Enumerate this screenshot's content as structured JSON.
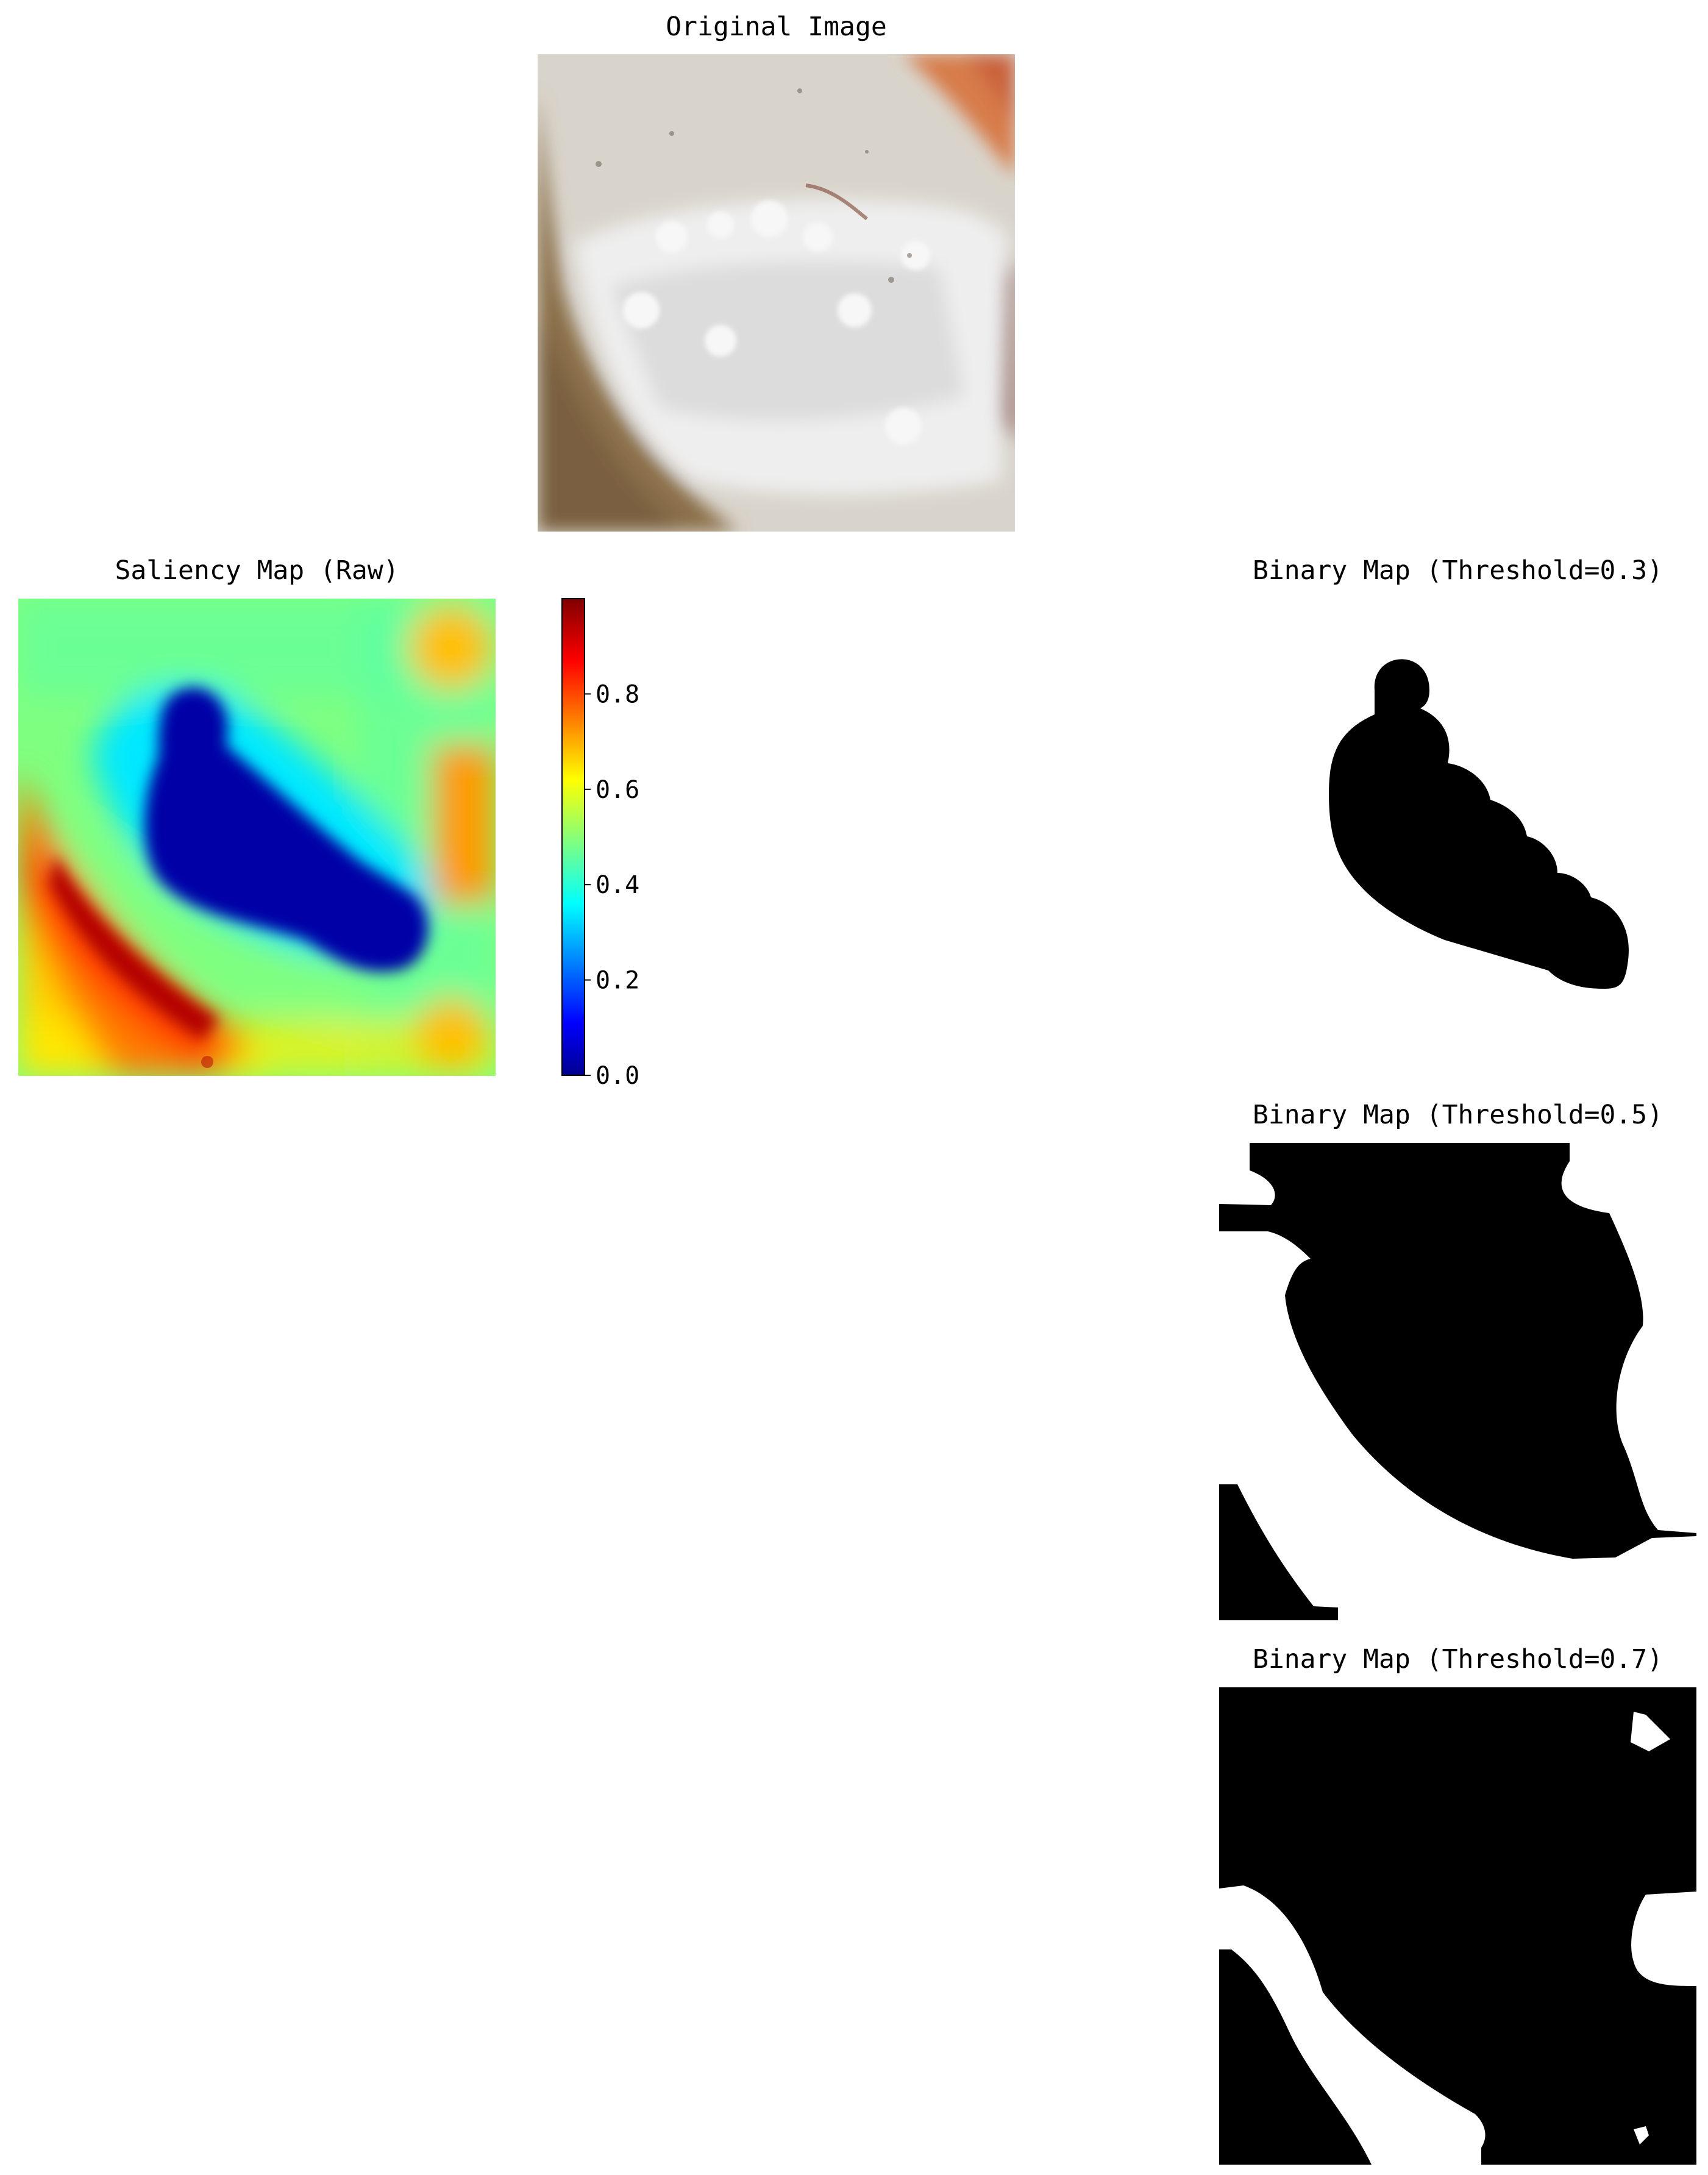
{
  "figure": {
    "original": {
      "title": "Original Image"
    },
    "saliency": {
      "title": "Saliency Map (Raw)"
    },
    "colorbar": {
      "colormap": "jet",
      "range": [
        0.0,
        1.0
      ],
      "ticks": [
        "0.0",
        "0.2",
        "0.4",
        "0.6",
        "0.8"
      ]
    },
    "binary_maps": [
      {
        "title": "Binary Map (Threshold=0.3)",
        "threshold": 0.3
      },
      {
        "title": "Binary Map (Threshold=0.5)",
        "threshold": 0.5
      },
      {
        "title": "Binary Map (Threshold=0.7)",
        "threshold": 0.7
      }
    ]
  },
  "colors": {
    "jet_dark_blue": "#00008f",
    "jet_blue": "#0000ff",
    "jet_cyan": "#00ffff",
    "jet_yellow": "#ffff00",
    "jet_red": "#ff0000",
    "jet_dark_red": "#800000",
    "mask_foreground": "#000000",
    "mask_background": "#ffffff"
  }
}
